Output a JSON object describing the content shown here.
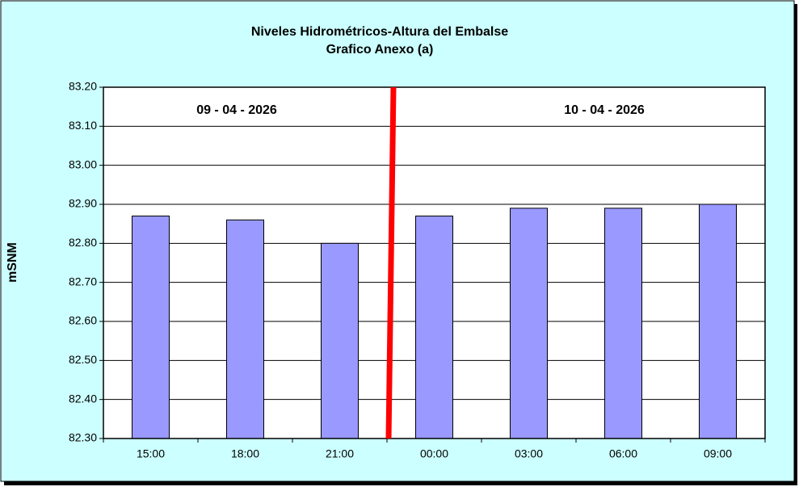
{
  "chart_data": {
    "type": "bar",
    "title": "Niveles Hidrométricos-Altura del Embalse",
    "subtitle": "Grafico Anexo (a)",
    "y_label": "mSNM",
    "annotations": [
      "09 - 04 - 2026",
      "10 - 04 - 2026"
    ],
    "categories": [
      "15:00",
      "18:00",
      "21:00",
      "00:00",
      "03:00",
      "06:00",
      "09:00"
    ],
    "values": [
      82.87,
      82.86,
      82.8,
      82.87,
      82.89,
      82.89,
      82.9
    ],
    "color": "#9999ff",
    "ylim": [
      82.3,
      83.2
    ],
    "yticks": [
      {
        "value": 82.3,
        "label": "82.30"
      },
      {
        "value": 82.4,
        "label": "82.40"
      },
      {
        "value": 82.5,
        "label": "82.50"
      },
      {
        "value": 82.6,
        "label": "82.60"
      },
      {
        "value": 82.7,
        "label": "82.70"
      },
      {
        "value": 82.8,
        "label": "82.80"
      },
      {
        "value": 82.9,
        "label": "82.90"
      },
      {
        "value": 83.0,
        "label": "83.00"
      },
      {
        "value": 83.1,
        "label": "83.10"
      },
      {
        "value": 83.2,
        "label": "83.20"
      }
    ],
    "grid": true
  }
}
